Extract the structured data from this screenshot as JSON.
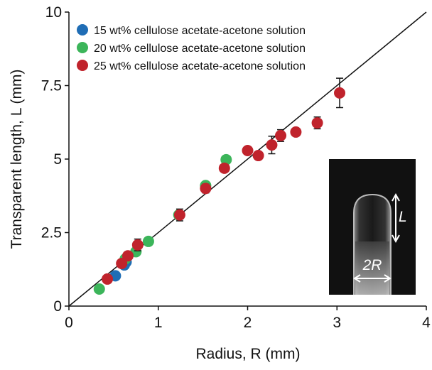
{
  "chart_data": {
    "type": "scatter",
    "xlabel": "Radius, R (mm)",
    "ylabel": "Transparent length, L (mm)",
    "xlim": [
      0,
      4
    ],
    "ylim": [
      0,
      10
    ],
    "xticks": [
      0,
      1,
      2,
      3,
      4
    ],
    "yticks": [
      0,
      2.5,
      5,
      7.5,
      10
    ],
    "legend": "upper left",
    "reference_line": {
      "x": [
        0,
        4
      ],
      "y": [
        0,
        10
      ],
      "color": "#111111"
    },
    "series": [
      {
        "name": "15 wt% cellulose acetate-acetone solution",
        "color": "#1f6db5",
        "x": [
          0.52,
          0.62,
          0.64
        ],
        "values": [
          1.03,
          1.4,
          1.5
        ],
        "errors": [
          null,
          null,
          null
        ]
      },
      {
        "name": "20 wt% cellulose acetate-acetone solution",
        "color": "#3cb55a",
        "x": [
          0.34,
          0.63,
          0.75,
          0.89,
          1.23,
          1.53,
          1.76
        ],
        "values": [
          0.58,
          1.6,
          1.85,
          2.2,
          3.1,
          4.1,
          4.98
        ],
        "errors": [
          null,
          null,
          null,
          null,
          null,
          null,
          null
        ]
      },
      {
        "name": "25 wt% cellulose acetate-acetone solution",
        "color": "#c0232c",
        "x": [
          0.43,
          0.59,
          0.66,
          0.77,
          1.24,
          1.53,
          1.74,
          2.0,
          2.12,
          2.27,
          2.37,
          2.54,
          2.78,
          3.03
        ],
        "values": [
          0.92,
          1.45,
          1.71,
          2.08,
          3.1,
          4.0,
          4.69,
          5.29,
          5.12,
          5.48,
          5.8,
          5.92,
          6.23,
          7.25
        ],
        "errors": [
          0.05,
          null,
          null,
          0.2,
          0.2,
          0.15,
          null,
          null,
          null,
          0.3,
          0.2,
          null,
          0.2,
          0.5
        ]
      }
    ],
    "inset": {
      "labels": [
        "L",
        "2R"
      ]
    }
  }
}
